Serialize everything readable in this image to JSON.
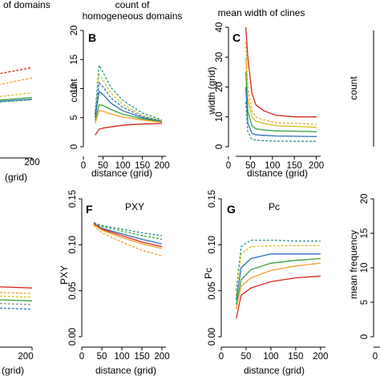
{
  "colors": {
    "red": "#d7261e",
    "orange": "#f0a030",
    "yellow": "#d8c01a",
    "green": "#3ca13c",
    "blue": "#2c6fb7",
    "teal": "#2b9c8c",
    "gray": "#8c8c8c"
  },
  "chart_data": [
    {
      "panel": "A",
      "type": "line",
      "title": "n of domains",
      "letter_visible": false,
      "xlabel": "(grid)",
      "ylabel": "",
      "xlim": [
        30,
        200
      ],
      "ylim": [
        0,
        20
      ],
      "x_ticks": [
        "200"
      ],
      "y_ticks": [],
      "series": [
        {
          "color": "red",
          "style": "dashed",
          "x": [
            30,
            60,
            100,
            150,
            200
          ],
          "y": [
            8,
            9.2,
            10.5,
            12.5,
            13.8
          ]
        },
        {
          "color": "orange",
          "style": "dashed",
          "x": [
            30,
            60,
            100,
            150,
            200
          ],
          "y": [
            7.5,
            8.3,
            9.3,
            10.6,
            12.0
          ]
        },
        {
          "color": "yellow",
          "style": "dashed",
          "x": [
            30,
            60,
            100,
            150,
            200
          ],
          "y": [
            7,
            7.4,
            7.9,
            8.6,
            9.4
          ]
        },
        {
          "color": "green",
          "style": "solid",
          "x": [
            30,
            60,
            100,
            150,
            200
          ],
          "y": [
            6.8,
            7.1,
            7.5,
            8.0,
            8.6
          ]
        },
        {
          "color": "blue",
          "style": "solid",
          "x": [
            30,
            60,
            100,
            150,
            200
          ],
          "y": [
            6.6,
            6.9,
            7.3,
            7.8,
            8.3
          ]
        },
        {
          "color": "teal",
          "style": "dashed",
          "x": [
            30,
            60,
            100,
            150,
            200
          ],
          "y": [
            6.4,
            6.8,
            7.2,
            7.7,
            8.2
          ]
        }
      ]
    },
    {
      "panel": "B",
      "type": "line",
      "title": "count of homogeneous domains",
      "title_lines": [
        "count of",
        "homogeneous domains"
      ],
      "letter_visible": true,
      "xlabel": "distance (grid)",
      "ylabel": "count",
      "xlim": [
        0,
        210
      ],
      "ylim": [
        0,
        20
      ],
      "x_ticks": [
        "0",
        "50",
        "100",
        "150",
        "200"
      ],
      "y_ticks": [
        "0",
        "5",
        "10",
        "15",
        "20"
      ],
      "series": [
        {
          "color": "teal",
          "style": "dashed",
          "x": [
            30,
            40,
            50,
            70,
            100,
            150,
            200
          ],
          "y": [
            6,
            14.0,
            12.8,
            10.2,
            8.0,
            5.8,
            4.6
          ]
        },
        {
          "color": "yellow",
          "style": "dashed",
          "x": [
            30,
            40,
            50,
            70,
            100,
            150,
            200
          ],
          "y": [
            5.5,
            12.5,
            11.4,
            9.2,
            7.3,
            5.4,
            4.4
          ]
        },
        {
          "color": "blue",
          "style": "solid",
          "x": [
            30,
            40,
            50,
            70,
            100,
            150,
            200
          ],
          "y": [
            5,
            9.5,
            9.0,
            7.5,
            6.2,
            5.0,
            4.3
          ]
        },
        {
          "color": "green",
          "style": "solid",
          "x": [
            30,
            40,
            50,
            70,
            100,
            150,
            200
          ],
          "y": [
            4.5,
            7.2,
            7.1,
            6.4,
            5.6,
            4.8,
            4.3
          ]
        },
        {
          "color": "orange",
          "style": "solid",
          "x": [
            30,
            40,
            50,
            70,
            100,
            150,
            200
          ],
          "y": [
            4,
            6.2,
            6.1,
            5.6,
            5.1,
            4.6,
            4.2
          ]
        },
        {
          "color": "red",
          "style": "solid",
          "x": [
            30,
            40,
            50,
            70,
            100,
            150,
            200
          ],
          "y": [
            2,
            3.0,
            3.2,
            3.4,
            3.7,
            3.9,
            4.0
          ]
        },
        {
          "color": "blue",
          "style": "dashed",
          "x": [
            30,
            40,
            50,
            70,
            100,
            150,
            200
          ],
          "y": [
            5.5,
            11.0,
            10.3,
            8.4,
            6.8,
            5.2,
            4.4
          ]
        }
      ]
    },
    {
      "panel": "C",
      "type": "line",
      "title": "mean width of clines",
      "letter_visible": true,
      "xlabel": "distance (grid)",
      "ylabel": "width (grid)",
      "xlim": [
        0,
        210
      ],
      "ylim": [
        0,
        40
      ],
      "x_ticks": [
        "0",
        "50",
        "100",
        "150",
        "200"
      ],
      "y_ticks": [
        "0",
        "10",
        "20",
        "30",
        "40"
      ],
      "series": [
        {
          "color": "red",
          "style": "solid",
          "x": [
            25,
            30,
            40,
            50,
            70,
            100,
            150,
            200
          ],
          "y": [
            40,
            30,
            18,
            14,
            12,
            10.5,
            10,
            10
          ]
        },
        {
          "color": "orange",
          "style": "dashed",
          "x": [
            25,
            30,
            40,
            50,
            70,
            100,
            150,
            200
          ],
          "y": [
            35,
            20,
            12,
            10,
            9,
            8,
            7.8,
            7.5
          ]
        },
        {
          "color": "yellow",
          "style": "solid",
          "x": [
            25,
            30,
            40,
            50,
            70,
            100,
            150,
            200
          ],
          "y": [
            30,
            16,
            10,
            8.5,
            7.8,
            7,
            6.8,
            6.5
          ]
        },
        {
          "color": "green",
          "style": "solid",
          "x": [
            25,
            30,
            40,
            50,
            70,
            100,
            150,
            200
          ],
          "y": [
            25,
            12,
            7,
            6,
            5.6,
            5.3,
            5.2,
            5
          ]
        },
        {
          "color": "blue",
          "style": "solid",
          "x": [
            25,
            30,
            40,
            50,
            70,
            100,
            150,
            200
          ],
          "y": [
            20,
            8,
            4.5,
            4,
            3.8,
            3.6,
            3.5,
            3.4
          ]
        },
        {
          "color": "teal",
          "style": "dashed",
          "x": [
            25,
            30,
            40,
            50,
            70,
            100,
            150,
            200
          ],
          "y": [
            15,
            5,
            2.5,
            2.2,
            2,
            1.9,
            1.8,
            1.8
          ]
        }
      ]
    },
    {
      "panel": "D",
      "type": "line",
      "title": "",
      "letter_visible": false,
      "xlabel": "",
      "ylabel": "count",
      "series": []
    },
    {
      "panel": "E",
      "type": "line",
      "title": "",
      "letter_visible": false,
      "xlabel": "(grid)",
      "ylabel": "",
      "xlim": [
        30,
        200
      ],
      "ylim": [
        0,
        0.15
      ],
      "x_ticks": [
        "200"
      ],
      "y_ticks": [],
      "series": [
        {
          "color": "red",
          "style": "solid",
          "x": [
            30,
            80,
            130,
            200
          ],
          "y": [
            0.058,
            0.057,
            0.055,
            0.053
          ]
        },
        {
          "color": "orange",
          "style": "dashed",
          "x": [
            30,
            80,
            130,
            200
          ],
          "y": [
            0.053,
            0.051,
            0.049,
            0.047
          ]
        },
        {
          "color": "yellow",
          "style": "dashed",
          "x": [
            30,
            80,
            130,
            200
          ],
          "y": [
            0.049,
            0.047,
            0.045,
            0.043
          ]
        },
        {
          "color": "green",
          "style": "solid",
          "x": [
            30,
            80,
            130,
            200
          ],
          "y": [
            0.045,
            0.043,
            0.041,
            0.039
          ]
        },
        {
          "color": "gray",
          "style": "dashed",
          "x": [
            30,
            80,
            130,
            200
          ],
          "y": [
            0.041,
            0.039,
            0.037,
            0.035
          ]
        },
        {
          "color": "blue",
          "style": "dashed",
          "x": [
            30,
            80,
            130,
            200
          ],
          "y": [
            0.036,
            0.034,
            0.032,
            0.03
          ]
        }
      ]
    },
    {
      "panel": "F",
      "type": "line",
      "title": "PXY",
      "letter_visible": true,
      "xlabel": "distance (grid)",
      "ylabel": "PXY",
      "xlim": [
        0,
        210
      ],
      "ylim": [
        0,
        0.15
      ],
      "x_ticks": [
        "0",
        "50",
        "100",
        "150",
        "200"
      ],
      "y_ticks": [
        "0.00",
        "0.05",
        "0.10",
        "0.15"
      ],
      "series": [
        {
          "color": "teal",
          "style": "dashed",
          "x": [
            30,
            50,
            100,
            150,
            200
          ],
          "y": [
            0.124,
            0.121,
            0.117,
            0.113,
            0.11
          ]
        },
        {
          "color": "green",
          "style": "dashed",
          "x": [
            30,
            50,
            100,
            150,
            200
          ],
          "y": [
            0.123,
            0.12,
            0.115,
            0.11,
            0.106
          ]
        },
        {
          "color": "blue",
          "style": "solid",
          "x": [
            30,
            50,
            100,
            150,
            200
          ],
          "y": [
            0.123,
            0.118,
            0.112,
            0.106,
            0.101
          ]
        },
        {
          "color": "red",
          "style": "solid",
          "x": [
            30,
            50,
            100,
            150,
            200
          ],
          "y": [
            0.123,
            0.117,
            0.11,
            0.103,
            0.098
          ]
        },
        {
          "color": "orange",
          "style": "solid",
          "x": [
            30,
            50,
            100,
            150,
            200
          ],
          "y": [
            0.122,
            0.116,
            0.108,
            0.101,
            0.096
          ]
        },
        {
          "color": "orange",
          "style": "dashed",
          "x": [
            30,
            50,
            100,
            150,
            200
          ],
          "y": [
            0.121,
            0.113,
            0.103,
            0.094,
            0.088
          ]
        }
      ]
    },
    {
      "panel": "G",
      "type": "line",
      "title": "Pc",
      "letter_visible": true,
      "xlabel": "distance (grid)",
      "ylabel": "Pc",
      "xlim": [
        0,
        210
      ],
      "ylim": [
        0,
        0.15
      ],
      "x_ticks": [
        "0",
        "50",
        "100",
        "150",
        "200"
      ],
      "y_ticks": [
        "0.00",
        "0.05",
        "0.10",
        "0.15"
      ],
      "series": [
        {
          "color": "teal",
          "style": "dashed",
          "x": [
            30,
            40,
            60,
            100,
            150,
            200
          ],
          "y": [
            0.05,
            0.098,
            0.105,
            0.105,
            0.104,
            0.104
          ]
        },
        {
          "color": "yellow",
          "style": "dashed",
          "x": [
            30,
            40,
            60,
            100,
            150,
            200
          ],
          "y": [
            0.045,
            0.09,
            0.098,
            0.099,
            0.099,
            0.099
          ]
        },
        {
          "color": "blue",
          "style": "solid",
          "x": [
            30,
            40,
            60,
            100,
            150,
            200
          ],
          "y": [
            0.04,
            0.075,
            0.085,
            0.09,
            0.09,
            0.09
          ]
        },
        {
          "color": "green",
          "style": "solid",
          "x": [
            30,
            40,
            60,
            100,
            150,
            200
          ],
          "y": [
            0.035,
            0.062,
            0.073,
            0.08,
            0.083,
            0.085
          ]
        },
        {
          "color": "orange",
          "style": "solid",
          "x": [
            30,
            40,
            60,
            100,
            150,
            200
          ],
          "y": [
            0.03,
            0.055,
            0.064,
            0.072,
            0.077,
            0.08
          ]
        },
        {
          "color": "red",
          "style": "solid",
          "x": [
            30,
            40,
            60,
            100,
            150,
            200
          ],
          "y": [
            0.02,
            0.045,
            0.053,
            0.06,
            0.064,
            0.066
          ]
        }
      ]
    },
    {
      "panel": "H",
      "type": "line",
      "title": "",
      "letter_visible": false,
      "xlabel": "",
      "ylabel": "mean frequency",
      "xlim": [
        0,
        210
      ],
      "ylim": [
        0,
        20
      ],
      "x_ticks": [
        "0"
      ],
      "y_ticks": [
        "0",
        "5",
        "10",
        "15",
        "20"
      ],
      "series": []
    }
  ]
}
